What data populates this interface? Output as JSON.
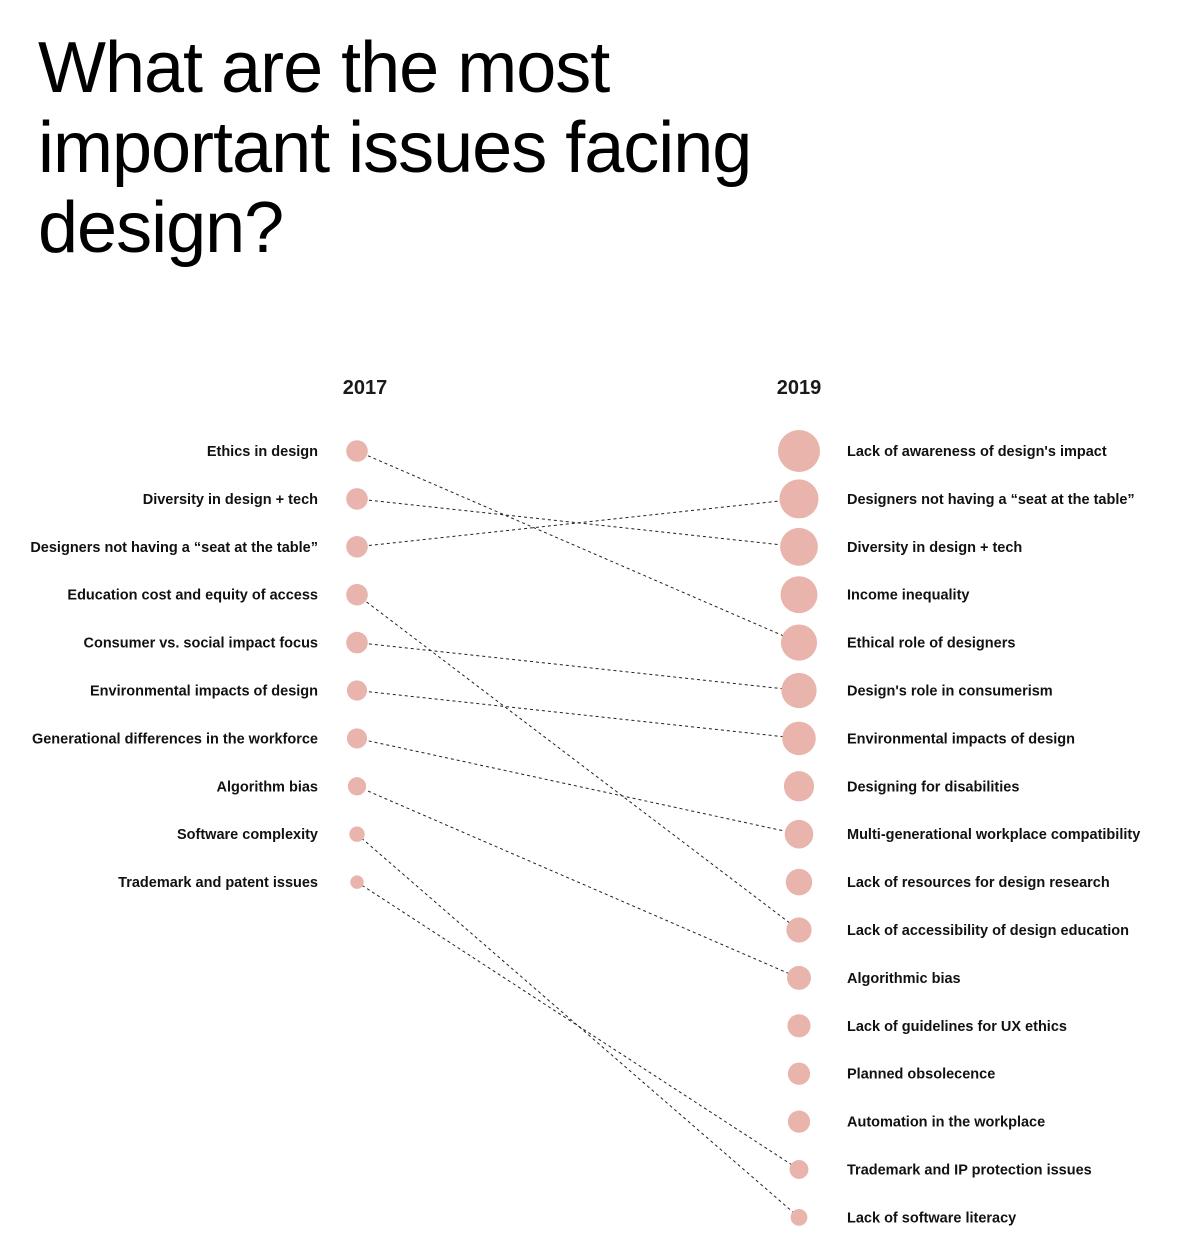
{
  "page": {
    "title": "What are the most important issues facing design?"
  },
  "chart_data": {
    "type": "slope",
    "columns": [
      "2017",
      "2019"
    ],
    "marker_color": "#e8b4ac",
    "left": {
      "year": "2017",
      "items": [
        {
          "label": "Ethics in design",
          "rank": 1,
          "weight": 0.45
        },
        {
          "label": "Diversity in design + tech",
          "rank": 2,
          "weight": 0.45
        },
        {
          "label": "Designers not having a “seat at the table”",
          "rank": 3,
          "weight": 0.45
        },
        {
          "label": "Education cost and equity of access",
          "rank": 4,
          "weight": 0.45
        },
        {
          "label": "Consumer vs. social impact focus",
          "rank": 5,
          "weight": 0.45
        },
        {
          "label": "Environmental impacts of design",
          "rank": 6,
          "weight": 0.42
        },
        {
          "label": "Generational differences in the workforce",
          "rank": 7,
          "weight": 0.42
        },
        {
          "label": "Algorithm bias",
          "rank": 8,
          "weight": 0.38
        },
        {
          "label": "Software complexity",
          "rank": 9,
          "weight": 0.32
        },
        {
          "label": "Trademark and patent issues",
          "rank": 10,
          "weight": 0.28
        }
      ]
    },
    "right": {
      "year": "2019",
      "items": [
        {
          "label": "Lack of awareness of design's impact",
          "rank": 1,
          "weight": 1.0
        },
        {
          "label": "Designers not having a “seat at the table”",
          "rank": 2,
          "weight": 0.93
        },
        {
          "label": "Diversity in design + tech",
          "rank": 3,
          "weight": 0.9
        },
        {
          "label": "Income inequality",
          "rank": 4,
          "weight": 0.88
        },
        {
          "label": "Ethical role of designers",
          "rank": 5,
          "weight": 0.86
        },
        {
          "label": "Design's role in consumerism",
          "rank": 6,
          "weight": 0.84
        },
        {
          "label": "Environmental impacts of design",
          "rank": 7,
          "weight": 0.8
        },
        {
          "label": "Designing for disabilities",
          "rank": 8,
          "weight": 0.72
        },
        {
          "label": "Multi-generational workplace compatibility",
          "rank": 9,
          "weight": 0.68
        },
        {
          "label": "Lack of resources for design research",
          "rank": 10,
          "weight": 0.63
        },
        {
          "label": "Lack of accessibility of design education",
          "rank": 11,
          "weight": 0.6
        },
        {
          "label": "Algorithmic bias",
          "rank": 12,
          "weight": 0.57
        },
        {
          "label": "Lack of guidelines for UX ethics",
          "rank": 13,
          "weight": 0.55
        },
        {
          "label": "Planned obsolecence",
          "rank": 14,
          "weight": 0.53
        },
        {
          "label": "Automation in the workplace",
          "rank": 15,
          "weight": 0.53
        },
        {
          "label": "Trademark and IP protection issues",
          "rank": 16,
          "weight": 0.45
        },
        {
          "label": "Lack of software literacy",
          "rank": 17,
          "weight": 0.4
        }
      ]
    },
    "links": [
      {
        "from": 1,
        "to": 5
      },
      {
        "from": 2,
        "to": 3
      },
      {
        "from": 3,
        "to": 2
      },
      {
        "from": 4,
        "to": 11
      },
      {
        "from": 5,
        "to": 6
      },
      {
        "from": 6,
        "to": 7
      },
      {
        "from": 7,
        "to": 9
      },
      {
        "from": 8,
        "to": 12
      },
      {
        "from": 9,
        "to": 17
      },
      {
        "from": 10,
        "to": 16
      }
    ]
  }
}
